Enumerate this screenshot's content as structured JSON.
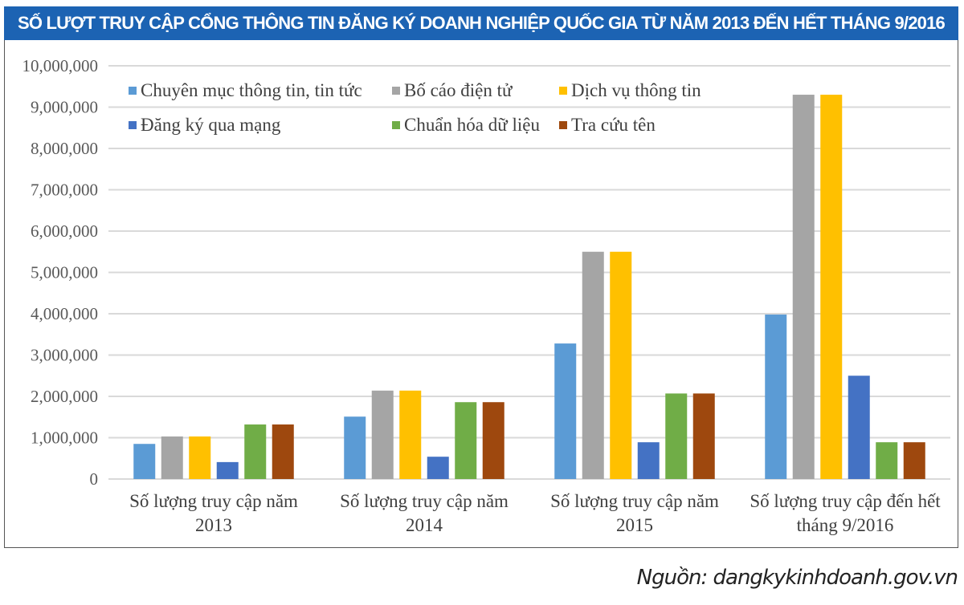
{
  "chart_data": {
    "type": "bar",
    "title": "SỐ LƯỢT TRUY CẬP CỔNG THÔNG TIN ĐĂNG KÝ DOANH NGHIỆP QUỐC GIA TỪ NĂM 2013 ĐẾN HẾT THÁNG 9/2016",
    "xlabel": "",
    "ylabel": "",
    "ylim": [
      0,
      10000000
    ],
    "yticks": [
      "0",
      "1,000,000",
      "2,000,000",
      "3,000,000",
      "4,000,000",
      "5,000,000",
      "6,000,000",
      "7,000,000",
      "8,000,000",
      "9,000,000",
      "10,000,000"
    ],
    "grid": true,
    "legend_placement": "top-left",
    "categories": [
      [
        "Số lượng truy cập năm",
        "2013"
      ],
      [
        "Số lượng truy cập năm",
        "2014"
      ],
      [
        "Số lượng truy cập năm",
        "2015"
      ],
      [
        "Số lượng truy cập đến hết",
        "tháng 9/2016"
      ]
    ],
    "series": [
      {
        "name": "Chuyên mục thông tin, tin tức",
        "color": "#5b9bd5",
        "values": [
          850000,
          1510000,
          3280000,
          3980000
        ]
      },
      {
        "name": "Bố cáo điện tử",
        "color": "#a5a5a5",
        "values": [
          1030000,
          2140000,
          5500000,
          9300000
        ]
      },
      {
        "name": "Dịch vụ thông tin",
        "color": "#ffc000",
        "values": [
          1030000,
          2140000,
          5500000,
          9300000
        ]
      },
      {
        "name": "Đăng ký qua mạng",
        "color": "#4472c4",
        "values": [
          410000,
          540000,
          890000,
          2500000
        ]
      },
      {
        "name": "Chuẩn hóa dữ liệu",
        "color": "#70ad47",
        "values": [
          1320000,
          1860000,
          2070000,
          890000
        ]
      },
      {
        "name": "Tra cứu tên",
        "color": "#9e480e",
        "values": [
          1320000,
          1860000,
          2070000,
          890000
        ]
      }
    ]
  },
  "title_bar_color": "#1c63b3",
  "source": "Nguồn: dangkykinhdoanh.gov.vn"
}
